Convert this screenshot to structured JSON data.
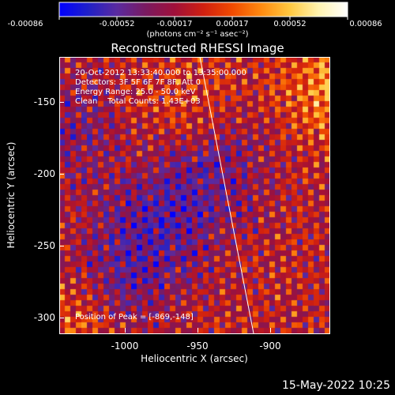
{
  "colorbar": {
    "ticks": [
      "-0.00086",
      "-0.00052",
      "-0.00017",
      "0.00017",
      "0.00052",
      "0.00086"
    ],
    "units": "(photons cm⁻² s⁻¹ asec⁻²)",
    "colors": [
      "#0000ff",
      "#2020c8",
      "#5a2aa0",
      "#7a1a60",
      "#a0103a",
      "#d02010",
      "#f04a00",
      "#ff8a10",
      "#ffc840",
      "#fff3b0",
      "#ffffff"
    ]
  },
  "plot": {
    "title": "Reconstructed RHESSI Image",
    "info_lines": [
      "20-Oct-2012 13:33:40.000 to 13:35:00.000",
      "Detectors: 3F 5F 6F 7F 8F, Att 0",
      "Energy Range: 25.0 - 50.0 keV",
      "Clean    Total Counts: 1.43E+03"
    ],
    "peak_text": "Position of Peak = [-869,-148]",
    "x_axis_label": "Heliocentric X (arcsec)",
    "y_axis_label": "Heliocentric Y (arcsec)",
    "x_ticks": [
      "-1000",
      "-950",
      "-900"
    ],
    "y_ticks": [
      "-150",
      "-200",
      "-250",
      "-300"
    ],
    "timestamp": "15-May-2022 10:25"
  }
}
